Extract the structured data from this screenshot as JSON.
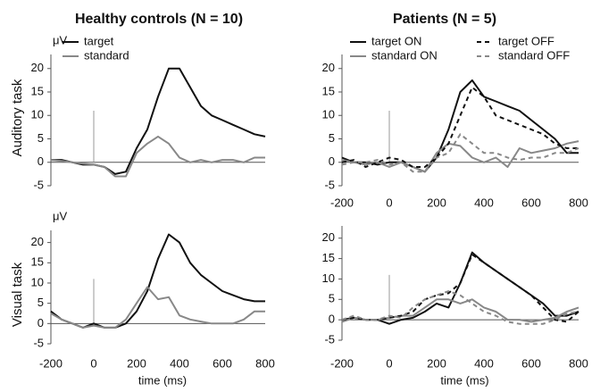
{
  "columns": [
    "Healthy controls (N = 10)",
    "Patients (N = 5)"
  ],
  "rows": [
    "Auditory task",
    "Visual task"
  ],
  "chart_data": [
    {
      "type": "line",
      "ylabel": "μV",
      "xlim": [
        -200,
        800
      ],
      "ylim": [
        -5,
        23
      ],
      "yticks": [
        -5,
        0,
        5,
        10,
        15,
        20
      ],
      "vline": {
        "x": 0,
        "top": 11
      },
      "legend": "upper left",
      "legend_columns": 1,
      "x": [
        -200,
        -150,
        -100,
        -50,
        0,
        50,
        100,
        150,
        200,
        250,
        300,
        350,
        400,
        450,
        500,
        550,
        600,
        650,
        700,
        750,
        800
      ],
      "series": [
        {
          "name": "target",
          "color": "#111111",
          "dashed": false,
          "values": [
            0.5,
            0.5,
            0,
            -0.5,
            -0.5,
            -1,
            -2.5,
            -2,
            3,
            7,
            14,
            20,
            20,
            16,
            12,
            10,
            9,
            8,
            7,
            6,
            5.5
          ]
        },
        {
          "name": "standard",
          "color": "#888888",
          "dashed": false,
          "values": [
            0.5,
            0.3,
            0,
            -0.3,
            -0.5,
            -1,
            -3,
            -3,
            2,
            4,
            5.5,
            4,
            1,
            0,
            0.5,
            0,
            0.5,
            0.5,
            0,
            1,
            1
          ]
        }
      ]
    },
    {
      "type": "line",
      "xlim": [
        -200,
        800
      ],
      "ylim": [
        -5,
        23
      ],
      "xticks": [
        -200,
        0,
        200,
        400,
        600,
        800
      ],
      "yticks": [
        -5,
        0,
        5,
        10,
        15,
        20
      ],
      "vline": {
        "x": 0,
        "top": 11
      },
      "legend": "upper left",
      "legend_columns": 2,
      "x": [
        -200,
        -150,
        -100,
        -50,
        0,
        50,
        100,
        150,
        200,
        250,
        300,
        350,
        400,
        450,
        500,
        550,
        600,
        650,
        700,
        750,
        800
      ],
      "series": [
        {
          "name": "target ON",
          "color": "#111111",
          "dashed": false,
          "values": [
            1,
            0,
            0,
            -0.5,
            0,
            0,
            -1,
            -2,
            1,
            7,
            15,
            17.5,
            14,
            13,
            12,
            11,
            9,
            7,
            5,
            2,
            2
          ]
        },
        {
          "name": "standard ON",
          "color": "#888888",
          "dashed": false,
          "values": [
            0.5,
            0,
            -0.5,
            0,
            -1,
            0,
            -1,
            -2,
            2,
            4,
            3.5,
            1,
            0,
            1,
            -1,
            3,
            2,
            2.5,
            3,
            4,
            4.5
          ]
        },
        {
          "name": "target OFF",
          "color": "#111111",
          "dashed": true,
          "values": [
            0,
            0.5,
            -1,
            0,
            1,
            0.5,
            -1,
            -1,
            1,
            4,
            10,
            16,
            14,
            10,
            9,
            8,
            7,
            6,
            4,
            3,
            3
          ]
        },
        {
          "name": "standard OFF",
          "color": "#888888",
          "dashed": true,
          "values": [
            -0.5,
            0,
            0,
            0.5,
            -0.5,
            0,
            -2,
            -2,
            1,
            2,
            6,
            4,
            2,
            2,
            1,
            0.5,
            1,
            1,
            2,
            2,
            3
          ]
        }
      ]
    },
    {
      "type": "line",
      "ylabel": "μV",
      "xlabel": "time (ms)",
      "xlim": [
        -200,
        800
      ],
      "ylim": [
        -5,
        23
      ],
      "xticks": [
        -200,
        0,
        200,
        400,
        600,
        800
      ],
      "yticks": [
        -5,
        0,
        5,
        10,
        15,
        20
      ],
      "vline": {
        "x": 0,
        "top": 11
      },
      "x": [
        -200,
        -150,
        -100,
        -50,
        0,
        50,
        100,
        150,
        200,
        250,
        300,
        350,
        400,
        450,
        500,
        550,
        600,
        650,
        700,
        750,
        800
      ],
      "series": [
        {
          "color": "#111111",
          "dashed": false,
          "values": [
            3,
            1,
            0,
            -1,
            0,
            -1,
            -1,
            0,
            3,
            8,
            16,
            22,
            20,
            15,
            12,
            10,
            8,
            7,
            6,
            5.5,
            5.5
          ]
        },
        {
          "color": "#888888",
          "dashed": false,
          "values": [
            2.5,
            1,
            0,
            -1,
            -0.5,
            -1,
            -1,
            1,
            5,
            9,
            6,
            6.5,
            2,
            1,
            0.5,
            0,
            0,
            0,
            1,
            3,
            3
          ]
        }
      ]
    },
    {
      "type": "line",
      "xlabel": "time (ms)",
      "xlim": [
        -200,
        800
      ],
      "ylim": [
        -5,
        23
      ],
      "xticks": [
        -200,
        0,
        200,
        400,
        600,
        800
      ],
      "yticks": [
        -5,
        0,
        5,
        10,
        15,
        20
      ],
      "vline": {
        "x": 0,
        "top": 11
      },
      "x": [
        -200,
        -150,
        -100,
        -50,
        0,
        50,
        100,
        150,
        200,
        250,
        300,
        350,
        400,
        450,
        500,
        550,
        600,
        650,
        700,
        750,
        800
      ],
      "series": [
        {
          "color": "#111111",
          "dashed": false,
          "values": [
            0,
            0.5,
            0,
            0,
            -1,
            0,
            0.5,
            2,
            4,
            3,
            9,
            16.5,
            14,
            12,
            10,
            8,
            6,
            4,
            1,
            1,
            2
          ]
        },
        {
          "color": "#888888",
          "dashed": false,
          "values": [
            -0.5,
            0.5,
            0,
            0,
            0.5,
            1,
            1,
            3,
            5,
            5,
            4,
            5,
            3,
            2,
            0,
            0,
            -0.5,
            0,
            0.5,
            2,
            3
          ]
        },
        {
          "color": "#111111",
          "dashed": true,
          "values": [
            0,
            0.5,
            0,
            0,
            0.5,
            1,
            2,
            5,
            6,
            6.5,
            9,
            16,
            14,
            12,
            10,
            8,
            6,
            3,
            0,
            -0.5,
            2
          ]
        },
        {
          "color": "#888888",
          "dashed": true,
          "values": [
            0,
            1,
            0,
            0,
            1,
            0.5,
            3,
            5,
            6,
            7,
            6,
            4,
            2,
            1,
            -0.5,
            -1,
            -1,
            -1,
            0,
            1.5,
            2
          ]
        }
      ]
    }
  ]
}
